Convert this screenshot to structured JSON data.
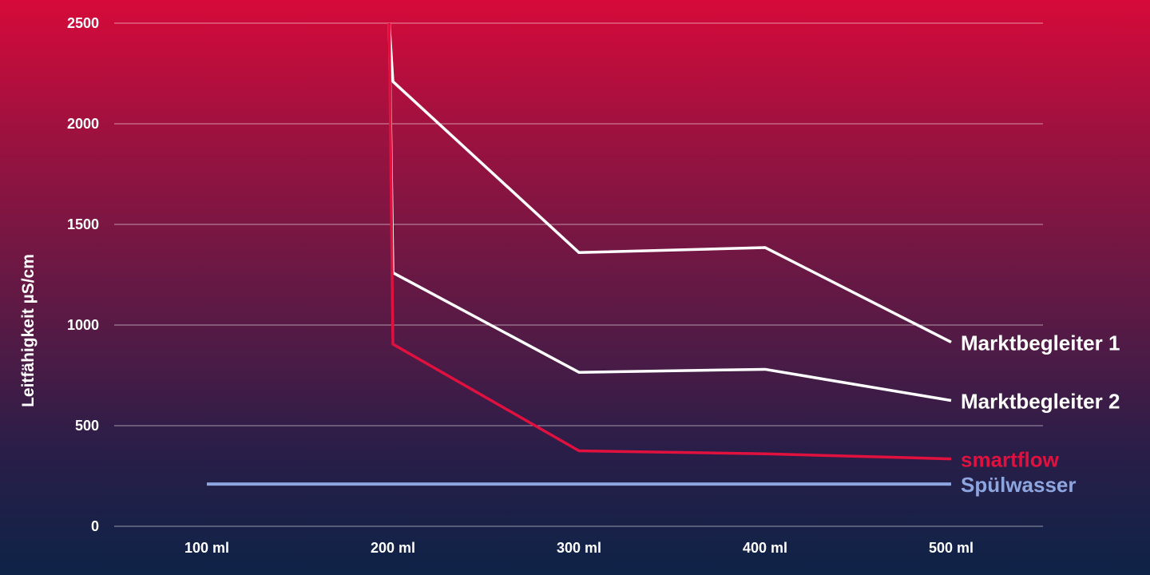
{
  "chart_data": {
    "type": "line",
    "ylabel": "Leitfähigkeit µS/cm",
    "xlabel": "",
    "categories": [
      "100 ml",
      "200 ml",
      "300 ml",
      "400 ml",
      "500 ml"
    ],
    "ylim": [
      0,
      2500
    ],
    "yticks": [
      0,
      500,
      1000,
      1500,
      2000,
      2500
    ],
    "grid": true,
    "legend": "inline-right",
    "series": [
      {
        "name": "Marktbegleiter 1",
        "color": "#ffffff",
        "points": [
          [
            1.98,
            2500
          ],
          [
            2.0,
            2210
          ],
          [
            3.0,
            1360
          ],
          [
            4.0,
            1385
          ],
          [
            5.0,
            915
          ]
        ]
      },
      {
        "name": "Marktbegleiter 2",
        "color": "#ffffff",
        "points": [
          [
            1.98,
            2500
          ],
          [
            2.0,
            1260
          ],
          [
            3.0,
            765
          ],
          [
            4.0,
            780
          ],
          [
            5.0,
            625
          ]
        ]
      },
      {
        "name": "smartflow",
        "color": "#e0103f",
        "points": [
          [
            1.98,
            2500
          ],
          [
            2.0,
            905
          ],
          [
            3.0,
            375
          ],
          [
            4.0,
            360
          ],
          [
            5.0,
            335
          ]
        ]
      },
      {
        "name": "Spülwasser",
        "color": "#8ea6e0",
        "points": [
          [
            1.0,
            210
          ],
          [
            5.0,
            210
          ]
        ]
      }
    ]
  }
}
